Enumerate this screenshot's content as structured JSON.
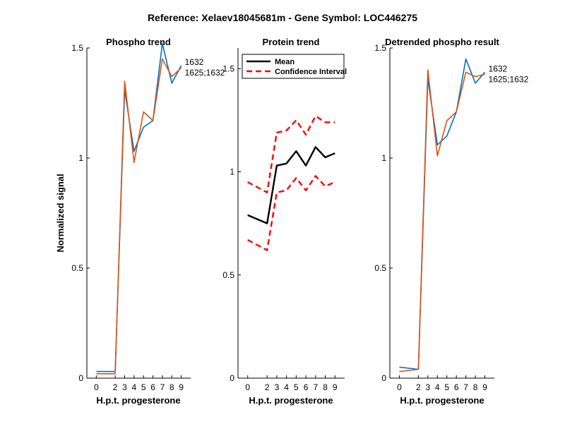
{
  "figure": {
    "title": "Reference:  Xelaev18045681m - Gene Symbol:  LOC446275"
  },
  "colors": {
    "series_blue": "#0072BD",
    "series_orange": "#D95319",
    "mean": "#000000",
    "ci": "#FF0000",
    "axis": "#000000"
  },
  "chart_data": [
    {
      "id": "phospho",
      "type": "line",
      "title": "Phospho trend",
      "xlabel": "H.p.t. progesterone",
      "ylabel": "Normalized signal",
      "x": [
        0,
        2,
        3,
        4,
        5,
        6,
        7,
        8,
        9
      ],
      "xticks": [
        "0",
        "2",
        "3",
        "4",
        "5",
        "6",
        "7",
        "8",
        "9"
      ],
      "ylim": [
        0,
        1.5
      ],
      "yticks": [
        0,
        0.5,
        1,
        1.5
      ],
      "ytick_labels": [
        "0",
        "0.5",
        "1",
        "1.5"
      ],
      "grid": false,
      "series": [
        {
          "color": "#0072BD",
          "values": [
            0.03,
            0.03,
            1.31,
            1.03,
            1.14,
            1.17,
            1.52,
            1.34,
            1.42
          ],
          "end_label": "1632"
        },
        {
          "color": "#D95319",
          "values": [
            0.02,
            0.02,
            1.35,
            0.98,
            1.21,
            1.17,
            1.45,
            1.37,
            1.41
          ],
          "end_label": "1625;1632"
        }
      ]
    },
    {
      "id": "protein",
      "type": "line",
      "title": "Protein trend",
      "xlabel": "H.p.t. progesterone",
      "ylabel": "",
      "x": [
        0,
        2,
        3,
        4,
        5,
        6,
        7,
        8,
        9
      ],
      "xticks": [
        "0",
        "2",
        "3",
        "4",
        "5",
        "6",
        "7",
        "8",
        "9"
      ],
      "ylim": [
        0,
        1.6
      ],
      "yticks": [
        0,
        0.5,
        1,
        1.5
      ],
      "ytick_labels": [
        "0",
        "0.5",
        "1",
        "1.5"
      ],
      "grid": false,
      "legend": {
        "placement": "top-left",
        "entries": [
          "Mean",
          "Confidence Interval"
        ]
      },
      "series": [
        {
          "name": "Mean",
          "color": "#000000",
          "style": "solid",
          "values": [
            0.79,
            0.75,
            1.03,
            1.04,
            1.1,
            1.03,
            1.12,
            1.07,
            1.09
          ]
        },
        {
          "name": "Confidence Interval",
          "color": "#FF0000",
          "style": "dashed",
          "values": [
            0.95,
            0.9,
            1.19,
            1.2,
            1.25,
            1.18,
            1.27,
            1.24,
            1.24
          ]
        },
        {
          "name": "",
          "color": "#FF0000",
          "style": "dashed",
          "values": [
            0.67,
            0.62,
            0.9,
            0.91,
            0.97,
            0.91,
            0.98,
            0.93,
            0.95
          ]
        }
      ]
    },
    {
      "id": "detrended",
      "type": "line",
      "title": "Detrended phospho result",
      "xlabel": "H.p.t. progesterone",
      "ylabel": "",
      "x": [
        0,
        2,
        3,
        4,
        5,
        6,
        7,
        8,
        9
      ],
      "xticks": [
        "0",
        "2",
        "3",
        "4",
        "5",
        "6",
        "7",
        "8",
        "9"
      ],
      "ylim": [
        0,
        1.5
      ],
      "yticks": [
        0,
        0.5,
        1,
        1.5
      ],
      "ytick_labels": [
        "0",
        "0.5",
        "1",
        "1.5"
      ],
      "grid": false,
      "series": [
        {
          "color": "#0072BD",
          "values": [
            0.05,
            0.04,
            1.36,
            1.06,
            1.1,
            1.21,
            1.45,
            1.34,
            1.39
          ],
          "end_label": "1632"
        },
        {
          "color": "#D95319",
          "values": [
            0.03,
            0.04,
            1.4,
            1.01,
            1.17,
            1.21,
            1.39,
            1.37,
            1.38
          ],
          "end_label": "1625;1632"
        }
      ]
    }
  ]
}
